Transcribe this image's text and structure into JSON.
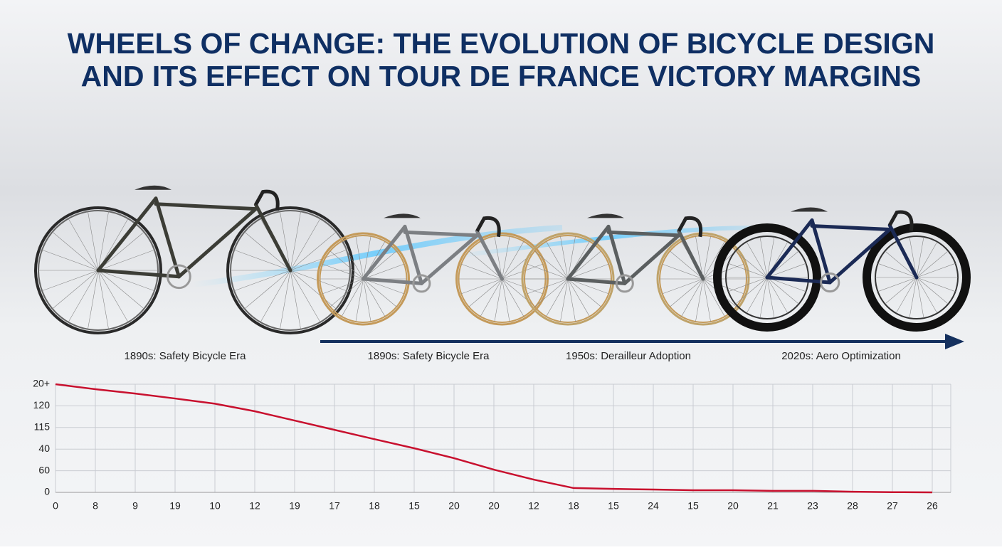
{
  "title_lines": [
    "WHEELS OF CHANGE: THE EVOLUTION OF BICYCLE DESIGN",
    "AND ITS EFFECT ON TOUR DE FRANCE VICTORY MARGINS"
  ],
  "eras": [
    "1890s: Safety Bicycle Era",
    "1890s: Safety Bicycle Era",
    "1950s: Derailleur Adoption",
    "2020s: Aero Optimization"
  ],
  "chart_data": {
    "type": "line",
    "categories": [
      "0",
      "8",
      "9",
      "19",
      "10",
      "12",
      "19",
      "17",
      "18",
      "15",
      "20",
      "20",
      "12",
      "18",
      "15",
      "24",
      "15",
      "20",
      "21",
      "23",
      "28",
      "27",
      "26"
    ],
    "series": [
      {
        "color": "#c8102e",
        "values": [
          5,
          4.77,
          4.57,
          4.34,
          4.1,
          3.75,
          3.32,
          2.89,
          2.46,
          2.04,
          1.58,
          1.05,
          0.59,
          0.2,
          0.16,
          0.13,
          0.1,
          0.1,
          0.07,
          0.07,
          0.03,
          0.01,
          0
        ]
      }
    ],
    "ylim": [
      0,
      5
    ],
    "yticks": [
      {
        "value": 5,
        "label": "20+"
      },
      {
        "value": 4,
        "label": "120"
      },
      {
        "value": 3,
        "label": "115"
      },
      {
        "value": 2,
        "label": "40"
      },
      {
        "value": 1,
        "label": "60"
      },
      0
    ],
    "grid": true
  }
}
